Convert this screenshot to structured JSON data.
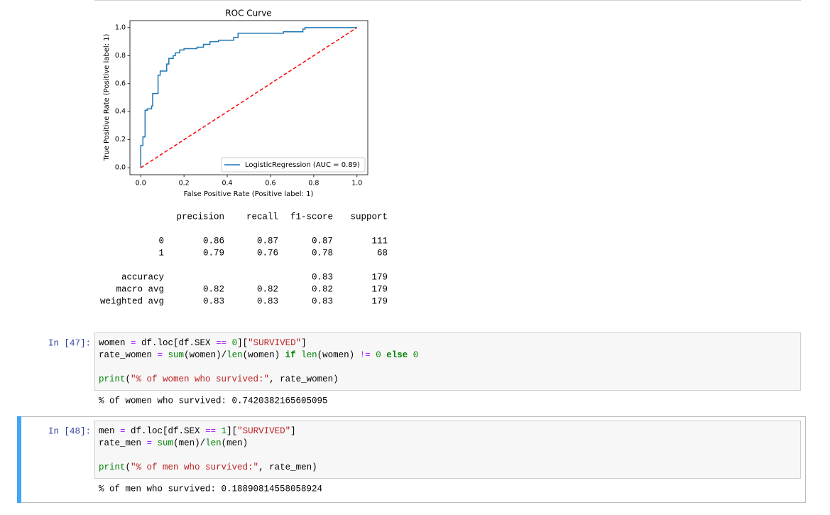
{
  "chart_data": {
    "type": "line",
    "title": "ROC Curve",
    "x_label": "False Positive Rate (Positive label: 1)",
    "y_label": "True Positive Rate (Positive label: 1)",
    "xlim": [
      -0.05,
      1.05
    ],
    "ylim": [
      -0.05,
      1.05
    ],
    "xticks": [
      {
        "value": 0,
        "label": "0.0"
      },
      0.2,
      0.4,
      0.6,
      0.8,
      {
        "value": 1,
        "label": "1.0"
      }
    ],
    "yticks": [
      {
        "value": 0,
        "label": "0.0"
      },
      0.2,
      0.4,
      0.6,
      0.8,
      {
        "value": 1,
        "label": "1.0"
      }
    ],
    "legend": "lower right",
    "series": [
      {
        "name": "LogisticRegression (AUC = 0.89)",
        "color": "#1f77b4",
        "linestyle": "solid",
        "x": [
          0,
          0,
          0.01,
          0.01,
          0.02,
          0.02,
          0.03,
          0.03,
          0.05,
          0.05,
          0.055,
          0.055,
          0.08,
          0.08,
          0.09,
          0.09,
          0.12,
          0.12,
          0.13,
          0.13,
          0.15,
          0.15,
          0.16,
          0.16,
          0.18,
          0.18,
          0.2,
          0.2,
          0.26,
          0.26,
          0.29,
          0.29,
          0.32,
          0.32,
          0.36,
          0.36,
          0.43,
          0.43,
          0.45,
          0.45,
          0.66,
          0.66,
          0.75,
          0.75,
          0.76,
          0.76,
          1.0
        ],
        "values": [
          0,
          0.16,
          0.16,
          0.22,
          0.22,
          0.41,
          0.41,
          0.42,
          0.42,
          0.44,
          0.44,
          0.53,
          0.53,
          0.66,
          0.66,
          0.69,
          0.69,
          0.74,
          0.74,
          0.78,
          0.78,
          0.8,
          0.8,
          0.82,
          0.82,
          0.84,
          0.84,
          0.85,
          0.85,
          0.86,
          0.86,
          0.88,
          0.88,
          0.9,
          0.9,
          0.91,
          0.91,
          0.93,
          0.93,
          0.96,
          0.96,
          0.97,
          0.97,
          0.99,
          0.99,
          1.0,
          1.0
        ]
      },
      {
        "color": "#ff0000",
        "linestyle": "dashed",
        "x": [
          0,
          1
        ],
        "values": [
          0,
          1
        ]
      }
    ]
  },
  "report": {
    "columns": [
      "precision",
      "recall",
      "f1-score",
      "support"
    ],
    "rows": [
      {
        "label": "0",
        "values": [
          "0.86",
          "0.87",
          "0.87",
          "111"
        ]
      },
      {
        "label": "1",
        "values": [
          "0.79",
          "0.76",
          "0.78",
          "68"
        ]
      },
      {
        "label": "accuracy",
        "values": [
          null,
          null,
          "0.83",
          "179"
        ]
      },
      {
        "label": "macro avg",
        "values": [
          "0.82",
          "0.82",
          "0.82",
          "179"
        ]
      },
      {
        "label": "weighted avg",
        "values": [
          "0.83",
          "0.83",
          "0.83",
          "179"
        ]
      }
    ]
  },
  "cells": [
    {
      "prompt": "In [47]:",
      "code": [
        [
          {
            "text": "women ",
            "color": "#000"
          },
          {
            "text": "=",
            "color": "#aa22ff"
          },
          {
            "text": " df.loc[df.SEX ",
            "color": "#000"
          },
          {
            "text": "==",
            "color": "#aa22ff"
          },
          {
            "text": " ",
            "color": "#000"
          },
          {
            "text": "0",
            "color": "#008800"
          },
          {
            "text": "][",
            "color": "#000"
          },
          {
            "text": "\"SURVIVED\"",
            "color": "#ba2121"
          },
          {
            "text": "]",
            "color": "#000"
          }
        ],
        [
          {
            "text": "rate_women ",
            "color": "#000"
          },
          {
            "text": "=",
            "color": "#aa22ff"
          },
          {
            "text": " ",
            "color": "#000"
          },
          {
            "text": "sum",
            "color": "#008000"
          },
          {
            "text": "(women)/",
            "color": "#000"
          },
          {
            "text": "len",
            "color": "#008000"
          },
          {
            "text": "(women) ",
            "color": "#000"
          },
          {
            "text": "if",
            "color": "#008000",
            "bold": true
          },
          {
            "text": " ",
            "color": "#000"
          },
          {
            "text": "len",
            "color": "#008000"
          },
          {
            "text": "(women) ",
            "color": "#000"
          },
          {
            "text": "!=",
            "color": "#aa22ff"
          },
          {
            "text": " ",
            "color": "#000"
          },
          {
            "text": "0",
            "color": "#008800"
          },
          {
            "text": " ",
            "color": "#000"
          },
          {
            "text": "else",
            "color": "#008000",
            "bold": true
          },
          {
            "text": " ",
            "color": "#000"
          },
          {
            "text": "0",
            "color": "#008800"
          }
        ],
        [],
        [
          {
            "text": "print",
            "color": "#008000"
          },
          {
            "text": "(",
            "color": "#000"
          },
          {
            "text": "\"% of women who survived:\"",
            "color": "#ba2121"
          },
          {
            "text": ", rate_women)",
            "color": "#000"
          }
        ]
      ],
      "output": "% of women who survived: 0.7420382165605095"
    },
    {
      "prompt": "In [48]:",
      "code": [
        [
          {
            "text": "men ",
            "color": "#000"
          },
          {
            "text": "=",
            "color": "#aa22ff"
          },
          {
            "text": " df.loc[df.SEX ",
            "color": "#000"
          },
          {
            "text": "==",
            "color": "#aa22ff"
          },
          {
            "text": " ",
            "color": "#000"
          },
          {
            "text": "1",
            "color": "#008800"
          },
          {
            "text": "][",
            "color": "#000"
          },
          {
            "text": "\"SURVIVED\"",
            "color": "#ba2121"
          },
          {
            "text": "]",
            "color": "#000"
          }
        ],
        [
          {
            "text": "rate_men ",
            "color": "#000"
          },
          {
            "text": "=",
            "color": "#aa22ff"
          },
          {
            "text": " ",
            "color": "#000"
          },
          {
            "text": "sum",
            "color": "#008000"
          },
          {
            "text": "(men)/",
            "color": "#000"
          },
          {
            "text": "len",
            "color": "#008000"
          },
          {
            "text": "(men)",
            "color": "#000"
          }
        ],
        [],
        [
          {
            "text": "print",
            "color": "#008000"
          },
          {
            "text": "(",
            "color": "#000"
          },
          {
            "text": "\"% of men who survived:\"",
            "color": "#ba2121"
          },
          {
            "text": ", rate_men)",
            "color": "#000"
          }
        ]
      ],
      "output": "% of men who survived: 0.18890814558058924"
    }
  ]
}
